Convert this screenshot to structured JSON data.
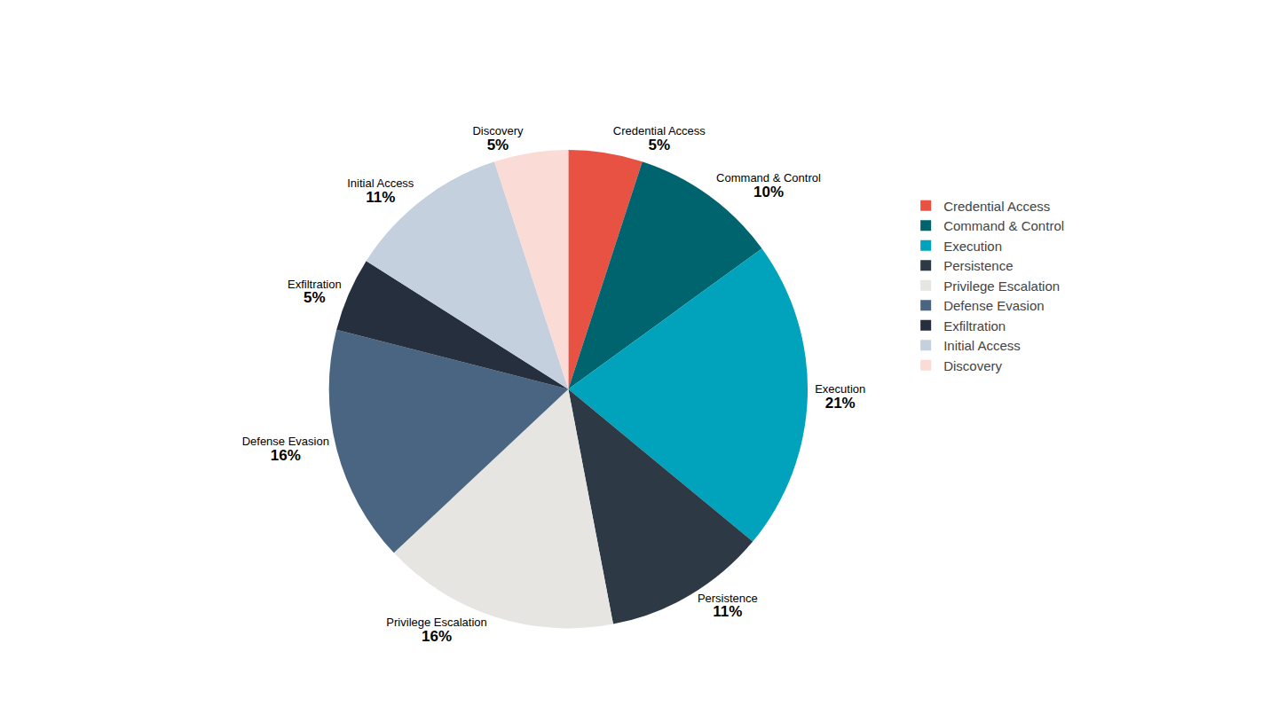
{
  "chart_data": {
    "type": "pie",
    "categories": [
      "Credential Access",
      "Command & Control",
      "Execution",
      "Persistence",
      "Privilege Escalation",
      "Defense Evasion",
      "Exfiltration",
      "Initial Access",
      "Discovery"
    ],
    "values": [
      5,
      10,
      21,
      11,
      16,
      16,
      5,
      11,
      5
    ],
    "value_labels": [
      "5%",
      "10%",
      "21%",
      "11%",
      "16%",
      "16%",
      "5%",
      "11%",
      "5%"
    ],
    "colors": [
      "#e85243",
      "#00646e",
      "#00a3bb",
      "#2d3a46",
      "#e6e5e1",
      "#4a6582",
      "#262f3d",
      "#c4d0dd",
      "#fadbd6"
    ],
    "data_labels": true,
    "legend": "right"
  }
}
